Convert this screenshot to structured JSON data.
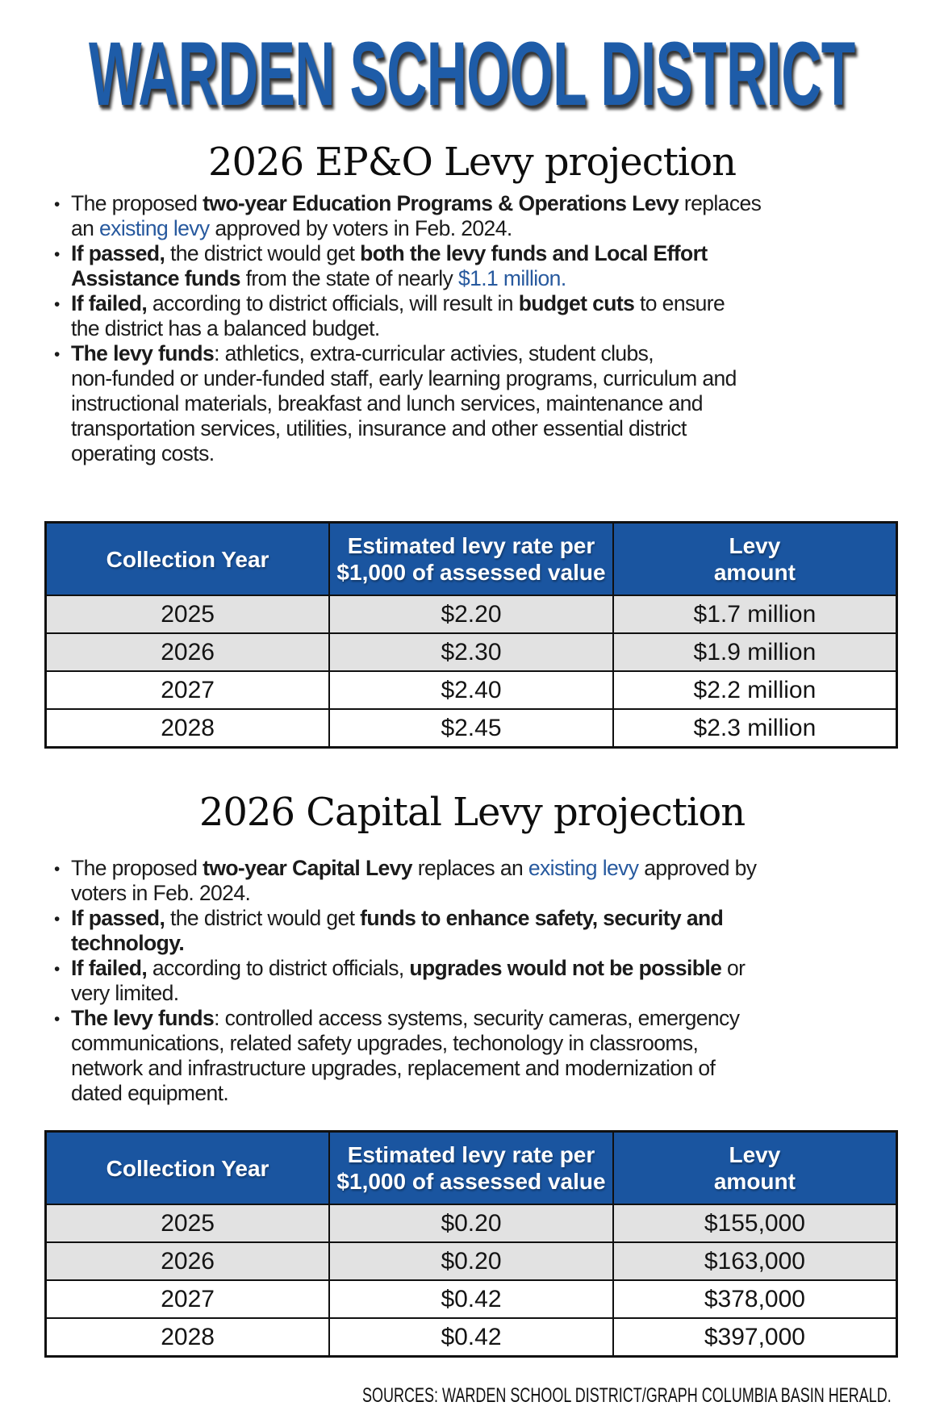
{
  "title": "WARDEN SCHOOL DISTRICT",
  "footer": {
    "sources_text": "SOURCES: WARDEN SCHOOL DISTRICT/GRAPH COLUMBIA BASIN HERALD."
  },
  "colors": {
    "title_blue": "#1e5ca8",
    "link_blue": "#27599e",
    "header_blue": "#1a55a0",
    "row_gray": "#e2e2e2",
    "border_dark": "#101010",
    "text_dark": "#1b1b1b"
  },
  "sections": [
    {
      "heading": "2026 EP&O Levy projection",
      "bullets": [
        [
          {
            "t": "The proposed ",
            "s": "normal"
          },
          {
            "t": "two-year Education Programs & Operations Levy",
            "s": "bold"
          },
          {
            "t": " replaces\nan ",
            "s": "normal"
          },
          {
            "t": "existing levy",
            "s": "link"
          },
          {
            "t": " approved by voters in Feb. 2024.",
            "s": "normal"
          }
        ],
        [
          {
            "t": "If passed,",
            "s": "bold"
          },
          {
            "t": " the district would get ",
            "s": "normal"
          },
          {
            "t": "both the levy funds and Local Effort\nAssistance funds",
            "s": "bold"
          },
          {
            "t": " from the state of nearly ",
            "s": "normal"
          },
          {
            "t": "$1.1 million.",
            "s": "link"
          }
        ],
        [
          {
            "t": "If failed,",
            "s": "bold"
          },
          {
            "t": " according to district officials, will result in ",
            "s": "normal"
          },
          {
            "t": "budget cuts",
            "s": "bold"
          },
          {
            "t": " to ensure\nthe district has a balanced budget.",
            "s": "normal"
          }
        ],
        [
          {
            "t": "The levy funds",
            "s": "bold"
          },
          {
            "t": ": athletics, extra-curricular activies, student clubs,\nnon-funded or under-funded staff, early learning programs, curriculum and\ninstructional materials, breakfast and lunch services, maintenance and\ntransportation services, utilities, insurance and other essential district\noperating costs.",
            "s": "normal"
          }
        ]
      ],
      "table": {
        "header_lines": [
          [
            "Collection Year"
          ],
          [
            "Estimated levy rate per",
            "$1,000 of assessed value"
          ],
          [
            "Levy",
            "amount"
          ]
        ],
        "shaded_rows": [
          true,
          true,
          false,
          false
        ]
      }
    },
    {
      "heading": "2026 Capital Levy projection",
      "bullets": [
        [
          {
            "t": "The proposed ",
            "s": "normal"
          },
          {
            "t": "two-year Capital Levy",
            "s": "bold"
          },
          {
            "t": " replaces an ",
            "s": "normal"
          },
          {
            "t": "existing levy",
            "s": "link"
          },
          {
            "t": " approved by\nvoters in Feb. 2024.",
            "s": "normal"
          }
        ],
        [
          {
            "t": "If passed,",
            "s": "bold"
          },
          {
            "t": " the district would get ",
            "s": "normal"
          },
          {
            "t": "funds to enhance safety, security and\ntechnology.",
            "s": "bold"
          }
        ],
        [
          {
            "t": "If failed,",
            "s": "bold"
          },
          {
            "t": " according to district officials, ",
            "s": "normal"
          },
          {
            "t": "upgrades would not be possible",
            "s": "bold"
          },
          {
            "t": " or\nvery limited.",
            "s": "normal"
          }
        ],
        [
          {
            "t": "The levy funds",
            "s": "bold"
          },
          {
            "t": ": controlled access systems, security cameras, emergency\ncommunications, related safety upgrades, techonology in classrooms,\nnetwork and infrastructure upgrades, replacement and modernization of\ndated equipment.",
            "s": "normal"
          }
        ]
      ],
      "table": {
        "header_lines": [
          [
            "Collection Year"
          ],
          [
            "Estimated levy rate per",
            "$1,000 of assessed value"
          ],
          [
            "Levy",
            "amount"
          ]
        ],
        "shaded_rows": [
          true,
          true,
          false,
          false
        ]
      }
    }
  ],
  "chart_data": [
    {
      "type": "table",
      "title": "2026 EP&O Levy projection",
      "columns": [
        "Collection Year",
        "Estimated levy rate per $1,000 of assessed value",
        "Levy amount"
      ],
      "rows": [
        [
          "2025",
          "$2.20",
          "$1.7 million"
        ],
        [
          "2026",
          "$2.30",
          "$1.9 million"
        ],
        [
          "2027",
          "$2.40",
          "$2.2 million"
        ],
        [
          "2028",
          "$2.45",
          "$2.3 million"
        ]
      ]
    },
    {
      "type": "table",
      "title": "2026 Capital Levy projection",
      "columns": [
        "Collection Year",
        "Estimated levy rate per $1,000 of assessed value",
        "Levy amount"
      ],
      "rows": [
        [
          "2025",
          "$0.20",
          "$155,000"
        ],
        [
          "2026",
          "$0.20",
          "$163,000"
        ],
        [
          "2027",
          "$0.42",
          "$378,000"
        ],
        [
          "2028",
          "$0.42",
          "$397,000"
        ]
      ]
    }
  ]
}
